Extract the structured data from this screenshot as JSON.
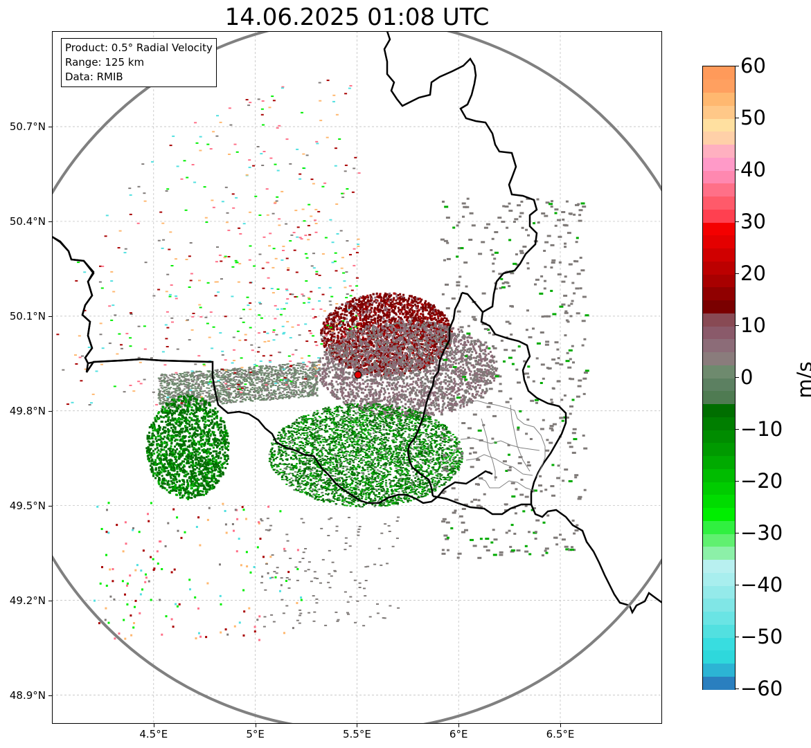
{
  "title": "14.06.2025 01:08 UTC",
  "info": {
    "product": "Product: 0.5° Radial Velocity",
    "range": "Range: 125 km",
    "source": "Data: RMIB"
  },
  "axes": {
    "lat_labels": [
      "48.9°N",
      "49.2°N",
      "49.5°N",
      "49.8°N",
      "50.1°N",
      "50.4°N",
      "50.7°N"
    ],
    "lat_values": [
      48.9,
      49.2,
      49.5,
      49.8,
      50.1,
      50.4,
      50.7
    ],
    "lon_labels": [
      "4.5°E",
      "5°E",
      "5.5°E",
      "6°E",
      "6.5°E"
    ],
    "lon_values": [
      4.5,
      5.0,
      5.5,
      6.0,
      6.5
    ],
    "lon_range": [
      4.0,
      7.0
    ],
    "lat_range": [
      48.8,
      50.99
    ]
  },
  "radar": {
    "site_lon": 5.505,
    "site_lat": 49.914,
    "site_color": "#e00000",
    "range_km": 125,
    "range_ring_color": "#808080"
  },
  "colorbar": {
    "unit": "m/s",
    "tick_labels": [
      "60",
      "50",
      "40",
      "30",
      "20",
      "10",
      "0",
      "−10",
      "−20",
      "−30",
      "−40",
      "−50",
      "−60"
    ],
    "vmin": -60,
    "vmax": 60,
    "colors_low_to_high": [
      "#2a7fbf",
      "#2cb4d4",
      "#2ed8dc",
      "#38dde0",
      "#52e0e0",
      "#6ae4e4",
      "#80e6e6",
      "#94eaea",
      "#a8eeee",
      "#b8f0f0",
      "#8cf0a8",
      "#60f070",
      "#30f040",
      "#00ee00",
      "#00dc00",
      "#00cc00",
      "#00bc00",
      "#00aa00",
      "#009a00",
      "#008c00",
      "#007e00",
      "#006e00",
      "#4f7b52",
      "#5c8061",
      "#6e8a6e",
      "#8a7c7c",
      "#8c6c78",
      "#8a5a6a",
      "#884a54",
      "#7a0000",
      "#900000",
      "#a80000",
      "#bc0000",
      "#d00000",
      "#e40000",
      "#f40000",
      "#ff4050",
      "#ff5a6a",
      "#ff7088",
      "#ff88b0",
      "#ff9ac8",
      "#ffb0c0",
      "#ffd0a8",
      "#ffe0a0",
      "#ffc888",
      "#ffb870",
      "#ffa060",
      "#ff9a5a"
    ]
  },
  "echo_colors": {
    "receding_dark": "#7a0000",
    "receding_mid": "#a80000",
    "near_zero_pink": "#8c6c78",
    "near_zero_green": "#6e8a6e",
    "approaching_dark": "#006e00",
    "approaching_mid": "#00aa00",
    "approaching_bright": "#00ee00",
    "gray_echo": "#7f7a78",
    "orange_echo": "#ffb870",
    "cyan_echo": "#52e0e0",
    "pink_echo": "#ff7088"
  }
}
